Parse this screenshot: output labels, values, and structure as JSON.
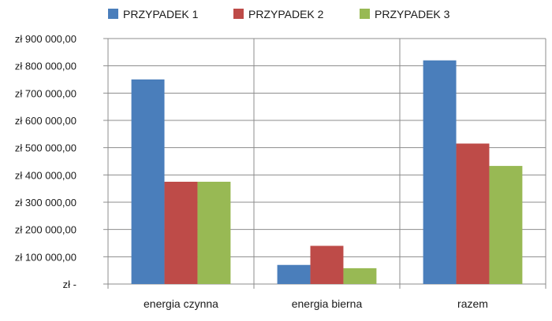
{
  "chart_data": {
    "type": "bar",
    "categories": [
      "energia czynna",
      "energia bierna",
      "razem"
    ],
    "series": [
      {
        "name": "PRZYPADEK 1",
        "color": "#4a7ebb",
        "values": [
          750000,
          70000,
          820000
        ]
      },
      {
        "name": "PRZYPADEK 2",
        "color": "#be4b48",
        "values": [
          375000,
          140000,
          515000
        ]
      },
      {
        "name": "PRZYPADEK 3",
        "color": "#98b954",
        "values": [
          375000,
          58000,
          433000
        ]
      }
    ],
    "ylim": [
      0,
      900000
    ],
    "yticks": [
      0,
      100000,
      200000,
      300000,
      400000,
      500000,
      600000,
      700000,
      800000,
      900000
    ],
    "ytick_labels": [
      "zł -",
      "zł 100 000,00",
      "zł 200 000,00",
      "zł 300 000,00",
      "zł 400 000,00",
      "zł 500 000,00",
      "zł 600 000,00",
      "zł 700 000,00",
      "zł 800 000,00",
      "zł 900 000,00"
    ],
    "grid": "horizontal",
    "legend": "top",
    "title": "",
    "xlabel": "",
    "ylabel": ""
  }
}
